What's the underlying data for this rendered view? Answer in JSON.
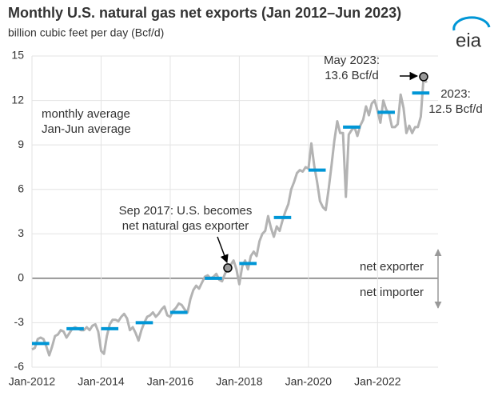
{
  "chart_data": {
    "type": "line",
    "title": "Monthly U.S. natural gas net exports (Jan 2012–Jun 2023)",
    "subtitle": "billion cubic feet per day (Bcf/d)",
    "logo": "eia",
    "x": [
      "2012-01",
      "2012-02",
      "2012-03",
      "2012-04",
      "2012-05",
      "2012-06",
      "2012-07",
      "2012-08",
      "2012-09",
      "2012-10",
      "2012-11",
      "2012-12",
      "2013-01",
      "2013-02",
      "2013-03",
      "2013-04",
      "2013-05",
      "2013-06",
      "2013-07",
      "2013-08",
      "2013-09",
      "2013-10",
      "2013-11",
      "2013-12",
      "2014-01",
      "2014-02",
      "2014-03",
      "2014-04",
      "2014-05",
      "2014-06",
      "2014-07",
      "2014-08",
      "2014-09",
      "2014-10",
      "2014-11",
      "2014-12",
      "2015-01",
      "2015-02",
      "2015-03",
      "2015-04",
      "2015-05",
      "2015-06",
      "2015-07",
      "2015-08",
      "2015-09",
      "2015-10",
      "2015-11",
      "2015-12",
      "2016-01",
      "2016-02",
      "2016-03",
      "2016-04",
      "2016-05",
      "2016-06",
      "2016-07",
      "2016-08",
      "2016-09",
      "2016-10",
      "2016-11",
      "2016-12",
      "2017-01",
      "2017-02",
      "2017-03",
      "2017-04",
      "2017-05",
      "2017-06",
      "2017-07",
      "2017-08",
      "2017-09",
      "2017-10",
      "2017-11",
      "2017-12",
      "2018-01",
      "2018-02",
      "2018-03",
      "2018-04",
      "2018-05",
      "2018-06",
      "2018-07",
      "2018-08",
      "2018-09",
      "2018-10",
      "2018-11",
      "2018-12",
      "2019-01",
      "2019-02",
      "2019-03",
      "2019-04",
      "2019-05",
      "2019-06",
      "2019-07",
      "2019-08",
      "2019-09",
      "2019-10",
      "2019-11",
      "2019-12",
      "2020-01",
      "2020-02",
      "2020-03",
      "2020-04",
      "2020-05",
      "2020-06",
      "2020-07",
      "2020-08",
      "2020-09",
      "2020-10",
      "2020-11",
      "2020-12",
      "2021-01",
      "2021-02",
      "2021-03",
      "2021-04",
      "2021-05",
      "2021-06",
      "2021-07",
      "2021-08",
      "2021-09",
      "2021-10",
      "2021-11",
      "2021-12",
      "2022-01",
      "2022-02",
      "2022-03",
      "2022-04",
      "2022-05",
      "2022-06",
      "2022-07",
      "2022-08",
      "2022-09",
      "2022-10",
      "2022-11",
      "2022-12",
      "2023-01",
      "2023-02",
      "2023-03",
      "2023-04",
      "2023-05",
      "2023-06"
    ],
    "series": [
      {
        "name": "monthly average",
        "color": "#b3b3b3",
        "values": [
          -4.8,
          -4.7,
          -4.1,
          -4.0,
          -4.1,
          -4.6,
          -5.2,
          -4.6,
          -3.9,
          -3.8,
          -3.5,
          -3.6,
          -4.0,
          -3.7,
          -3.4,
          -3.3,
          -3.4,
          -3.5,
          -3.5,
          -3.3,
          -3.5,
          -3.2,
          -3.1,
          -3.6,
          -4.9,
          -5.1,
          -3.9,
          -3.1,
          -2.8,
          -2.8,
          -2.9,
          -2.6,
          -2.4,
          -2.7,
          -3.5,
          -3.3,
          -3.7,
          -4.2,
          -3.5,
          -3.0,
          -2.6,
          -2.5,
          -2.3,
          -2.6,
          -2.4,
          -2.1,
          -1.9,
          -2.5,
          -2.6,
          -2.2,
          -2.0,
          -1.7,
          -1.8,
          -2.1,
          -2.3,
          -1.4,
          -0.8,
          -0.5,
          -0.7,
          -0.3,
          0.1,
          0.2,
          0.0,
          0.1,
          0.3,
          -0.1,
          -0.2,
          0.3,
          0.7,
          0.9,
          1.2,
          0.6,
          -0.4,
          0.8,
          1.2,
          0.6,
          1.5,
          1.8,
          1.5,
          2.5,
          3.0,
          3.2,
          4.2,
          3.4,
          2.8,
          3.5,
          3.2,
          3.9,
          4.5,
          5.0,
          6.0,
          6.5,
          7.1,
          7.3,
          7.2,
          7.5,
          7.4,
          9.1,
          7.6,
          6.5,
          5.2,
          4.8,
          4.6,
          6.0,
          7.6,
          9.3,
          10.6,
          9.8,
          9.8,
          5.5,
          9.7,
          10.0,
          10.2,
          9.6,
          10.3,
          10.7,
          11.6,
          11.0,
          11.8,
          12.0,
          11.3,
          10.5,
          12.0,
          11.4,
          11.1,
          10.2,
          10.2,
          10.4,
          12.4,
          11.5,
          9.8,
          10.3,
          9.8,
          10.2,
          10.2,
          10.9,
          13.6,
          13.2
        ]
      },
      {
        "name": "Jan-Jun average",
        "color": "#0096d6",
        "segments": "jan-jun",
        "x": [
          "2012",
          "2013",
          "2014",
          "2015",
          "2016",
          "2017",
          "2018",
          "2019",
          "2020",
          "2021",
          "2022",
          "2023"
        ],
        "values": [
          -4.4,
          -3.4,
          -3.4,
          -3.0,
          -2.3,
          0.0,
          1.0,
          4.1,
          7.3,
          10.2,
          11.2,
          12.5
        ]
      }
    ],
    "annotations": [
      {
        "lines": [
          "May 2023:",
          "13.6 Bcf/d"
        ]
      },
      {
        "lines": [
          "2023:",
          "12.5 Bcf/d"
        ]
      },
      {
        "lines": [
          "Sep 2017: U.S. becomes",
          "net natural gas exporter"
        ]
      },
      {
        "lines": [
          "net exporter"
        ]
      },
      {
        "lines": [
          "net importer"
        ]
      }
    ],
    "xlim": [
      "2012-01",
      "2023-10"
    ],
    "xticks": [
      {
        "value": "2012-01",
        "label": "Jan-2012"
      },
      {
        "value": "2014-01",
        "label": "Jan-2014"
      },
      {
        "value": "2016-01",
        "label": "Jan-2016"
      },
      {
        "value": "2018-01",
        "label": "Jan-2018"
      },
      {
        "value": "2020-01",
        "label": "Jan-2020"
      },
      {
        "value": "2022-01",
        "label": "Jan-2022"
      }
    ],
    "ylim": [
      -6,
      15
    ],
    "yticks": [
      -6,
      -3,
      0,
      3,
      6,
      9,
      12,
      15
    ],
    "grid": true
  }
}
